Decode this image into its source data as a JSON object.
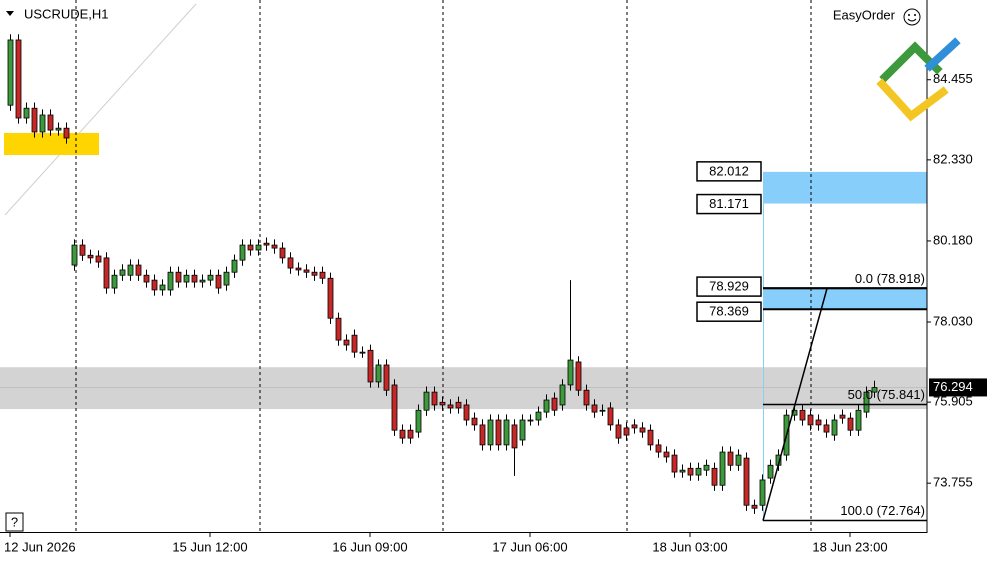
{
  "chart_data": {
    "type": "candlestick",
    "title": "USCRUDE,H1",
    "tool": "EasyOrder",
    "help": "?",
    "categories": [
      "12 Jun 2026",
      null,
      null,
      null,
      null,
      null,
      null,
      null,
      null,
      null,
      null,
      null,
      null,
      null,
      null,
      null,
      null,
      null,
      null,
      null,
      null,
      null,
      null,
      null,
      null,
      "15 Jun 12:00",
      null,
      null,
      null,
      null,
      null,
      null,
      null,
      null,
      null,
      null,
      null,
      null,
      null,
      null,
      null,
      null,
      null,
      null,
      null,
      "16 Jun 09:00",
      null,
      null,
      null,
      null,
      null,
      null,
      null,
      null,
      null,
      null,
      null,
      null,
      null,
      null,
      null,
      null,
      null,
      null,
      null,
      "17 Jun 06:00",
      null,
      null,
      null,
      null,
      null,
      null,
      null,
      null,
      null,
      null,
      null,
      null,
      null,
      null,
      null,
      null,
      null,
      null,
      null,
      "18 Jun 03:00",
      null,
      null,
      null,
      null,
      null,
      null,
      null,
      null,
      null,
      null,
      null,
      null,
      null,
      null,
      null,
      null,
      null,
      null,
      null,
      "18 Jun 23:00",
      null,
      null,
      null
    ],
    "open": [
      83.78,
      85.51,
      83.44,
      83.7,
      83.07,
      83.52,
      83.12,
      83.17,
      79.54,
      80.07,
      79.8,
      79.78,
      79.73,
      78.93,
      79.27,
      79.27,
      79.54,
      79.27,
      79.14,
      78.88,
      78.88,
      79.35,
      79.09,
      79.27,
      79.09,
      79.14,
      79.27,
      79.01,
      79.35,
      79.67,
      80.07,
      79.94,
      80.12,
      80.07,
      79.99,
      79.73,
      79.46,
      79.41,
      79.35,
      79.35,
      79.19,
      78.13,
      77.55,
      77.68,
      77.23,
      77.28,
      76.44,
      76.89,
      76.36,
      75.16,
      75.16,
      75.11,
      75.69,
      76.17,
      75.9,
      75.83,
      75.9,
      75.83,
      75.48,
      75.3,
      74.77,
      75.43,
      74.77,
      75.3,
      74.9,
      75.43,
      75.43,
      75.64,
      76.01,
      75.83,
      76.36,
      76.97,
      76.22,
      75.83,
      75.69,
      75.75,
      75.3,
      75.22,
      75.3,
      75.22,
      75.16,
      74.77,
      74.58,
      74.5,
      74.05,
      74.15,
      73.97,
      74.1,
      74.15,
      73.7,
      74.58,
      74.23,
      74.42,
      73.17,
      73.17,
      73.89,
      74.23,
      74.5,
      75.56,
      75.69,
      75.56,
      75.43,
      75.3,
      75.03,
      75.56,
      75.48,
      75.16,
      75.64,
      76.17
    ],
    "high": [
      85.66,
      85.66,
      83.85,
      83.85,
      83.67,
      83.67,
      83.32,
      83.32,
      80.22,
      80.22,
      79.95,
      79.93,
      79.88,
      79.42,
      79.56,
      79.69,
      79.69,
      79.42,
      79.29,
      79.16,
      79.5,
      79.5,
      79.42,
      79.42,
      79.29,
      79.42,
      79.42,
      79.5,
      79.82,
      80.22,
      80.22,
      80.22,
      80.27,
      80.22,
      80.14,
      79.88,
      79.61,
      79.56,
      79.5,
      79.5,
      79.34,
      78.28,
      77.7,
      77.83,
      77.38,
      77.43,
      77.04,
      77.04,
      76.51,
      75.31,
      75.31,
      75.84,
      76.32,
      76.32,
      76.05,
      75.98,
      76.05,
      75.98,
      75.63,
      75.45,
      75.58,
      75.58,
      75.58,
      75.45,
      75.58,
      75.58,
      75.79,
      76.11,
      76.16,
      76.51,
      79.14,
      77.12,
      76.37,
      75.98,
      75.84,
      75.9,
      75.45,
      75.37,
      75.45,
      75.37,
      75.31,
      74.92,
      74.73,
      74.65,
      74.25,
      74.3,
      74.3,
      74.38,
      74.3,
      74.73,
      74.73,
      74.65,
      74.57,
      73.32,
      73.99,
      74.38,
      74.65,
      75.71,
      75.84,
      75.84,
      75.71,
      75.58,
      75.45,
      75.58,
      75.71,
      75.63,
      75.84,
      76.32,
      76.47
    ],
    "low": [
      83.63,
      83.29,
      83.29,
      82.92,
      82.92,
      82.97,
      82.97,
      82.76,
      79.39,
      79.65,
      79.58,
      79.47,
      78.78,
      78.78,
      79.12,
      79.12,
      79.12,
      78.94,
      78.73,
      78.73,
      78.73,
      78.94,
      78.94,
      78.94,
      78.94,
      78.99,
      78.78,
      78.86,
      79.2,
      79.52,
      79.79,
      79.79,
      79.92,
      79.84,
      79.58,
      79.31,
      79.26,
      79.2,
      79.12,
      79.04,
      77.98,
      77.4,
      77.27,
      77.08,
      77.08,
      76.29,
      76.29,
      76.07,
      75.01,
      74.8,
      74.8,
      74.96,
      75.54,
      75.68,
      75.68,
      75.6,
      75.6,
      75.28,
      75.15,
      74.62,
      74.62,
      74.62,
      74.62,
      73.95,
      74.75,
      75.28,
      75.28,
      75.49,
      75.54,
      75.68,
      76.21,
      76.07,
      75.68,
      75.49,
      75.54,
      75.15,
      74.8,
      74.88,
      75.07,
      74.96,
      74.62,
      74.43,
      74.3,
      73.9,
      73.9,
      73.82,
      73.82,
      73.95,
      73.55,
      73.55,
      74.08,
      74.08,
      73.02,
      72.94,
      73.02,
      73.74,
      74.08,
      74.35,
      75.41,
      75.28,
      75.15,
      75.15,
      74.96,
      74.88,
      75.33,
      75.01,
      75.01,
      75.49,
      76.02
    ],
    "close": [
      85.51,
      83.44,
      83.7,
      83.07,
      83.52,
      83.12,
      83.17,
      82.91,
      80.07,
      79.8,
      79.73,
      79.62,
      78.93,
      79.27,
      79.41,
      79.54,
      79.27,
      79.09,
      78.88,
      79.01,
      79.35,
      79.09,
      79.27,
      79.09,
      79.14,
      79.27,
      78.93,
      79.35,
      79.67,
      80.07,
      79.94,
      80.07,
      80.07,
      79.99,
      79.73,
      79.46,
      79.41,
      79.35,
      79.27,
      79.19,
      78.13,
      77.55,
      77.42,
      77.23,
      77.23,
      76.44,
      76.89,
      76.22,
      75.16,
      74.95,
      74.95,
      75.69,
      76.17,
      75.83,
      75.83,
      75.75,
      75.75,
      75.43,
      75.3,
      74.77,
      75.43,
      74.77,
      75.43,
      74.69,
      75.43,
      75.43,
      75.64,
      75.96,
      75.69,
      76.36,
      77.02,
      76.22,
      75.83,
      75.64,
      75.69,
      75.3,
      74.95,
      75.03,
      75.22,
      75.11,
      74.77,
      74.58,
      74.45,
      74.05,
      74.1,
      73.97,
      74.15,
      74.23,
      73.7,
      74.58,
      74.23,
      74.5,
      73.17,
      73.09,
      73.84,
      74.23,
      74.5,
      75.56,
      75.69,
      75.43,
      75.3,
      75.3,
      75.11,
      75.43,
      75.48,
      75.16,
      75.69,
      76.17,
      76.29
    ],
    "up_color": "#3c9a3c",
    "down_color": "#c62828",
    "ylim": [
      72.46,
      86.57
    ],
    "yticks": [
      84.455,
      {
        "value": 82.33,
        "label": "82.330"
      },
      {
        "value": 80.18,
        "label": "80.180"
      },
      {
        "value": 78.03,
        "label": "78.030"
      },
      75.905,
      73.755
    ],
    "last_price": 76.294,
    "band": {
      "top": 76.83,
      "bottom": 75.72,
      "color": "#d3d3d3"
    },
    "zones": [
      {
        "top": 82.012,
        "bottom": 81.171,
        "color": "#87cefa"
      },
      {
        "top": 78.929,
        "bottom": 78.369,
        "color": "#87cefa"
      }
    ],
    "fibonacci": [
      {
        "label": "0.0 (78.918)",
        "price": 78.918
      },
      {
        "label": "50.0 (75.841)",
        "price": 75.841
      },
      {
        "label": "100.0 (72.764)",
        "price": 72.764
      }
    ]
  }
}
